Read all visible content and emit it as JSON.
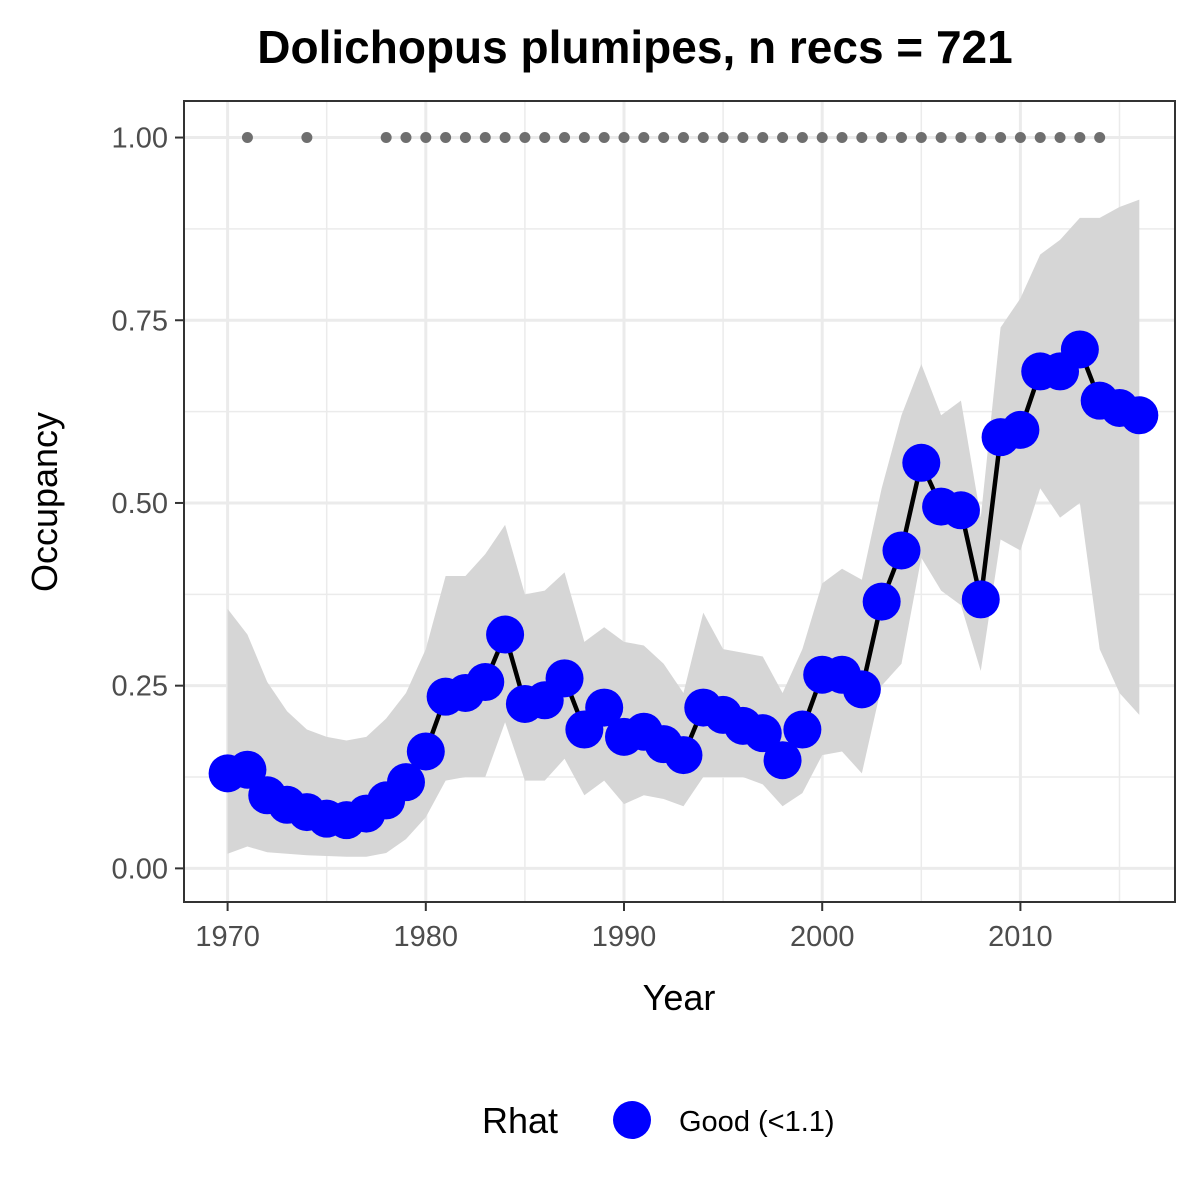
{
  "chart_data": {
    "type": "line",
    "title": "Dolichopus plumipes, n recs = 721",
    "xlabel": "Year",
    "ylabel": "Occupancy",
    "xlim": [
      1967.8,
      2017.8
    ],
    "ylim": [
      -0.046,
      1.05
    ],
    "x_ticks": [
      1970,
      1980,
      1990,
      2000,
      2010
    ],
    "x_tick_labels": [
      "1970",
      "1980",
      "1990",
      "2000",
      "2010"
    ],
    "y_ticks": [
      0,
      0.25,
      0.5,
      0.75,
      1.0
    ],
    "y_tick_labels": [
      "0.00",
      "0.25",
      "0.50",
      "0.75",
      "1.00"
    ],
    "grid": true,
    "series": [
      {
        "name": "Good (<1.1)",
        "x": [
          1970,
          1971,
          1972,
          1973,
          1974,
          1975,
          1976,
          1977,
          1978,
          1979,
          1980,
          1981,
          1982,
          1983,
          1984,
          1985,
          1986,
          1987,
          1988,
          1989,
          1990,
          1991,
          1992,
          1993,
          1994,
          1995,
          1996,
          1997,
          1998,
          1999,
          2000,
          2001,
          2002,
          2003,
          2004,
          2005,
          2006,
          2007,
          2008,
          2009,
          2010,
          2011,
          2012,
          2013,
          2014,
          2015,
          2016
        ],
        "y": [
          0.13,
          0.135,
          0.1,
          0.087,
          0.077,
          0.068,
          0.066,
          0.075,
          0.093,
          0.118,
          0.16,
          0.235,
          0.24,
          0.255,
          0.32,
          0.225,
          0.23,
          0.26,
          0.19,
          0.22,
          0.18,
          0.187,
          0.17,
          0.155,
          0.22,
          0.21,
          0.195,
          0.185,
          0.148,
          0.19,
          0.265,
          0.265,
          0.245,
          0.365,
          0.435,
          0.555,
          0.495,
          0.49,
          0.368,
          0.59,
          0.6,
          0.68,
          0.68,
          0.71,
          0.64,
          0.63,
          0.62
        ],
        "lower": [
          0.02,
          0.03,
          0.022,
          0.02,
          0.018,
          0.017,
          0.016,
          0.016,
          0.021,
          0.04,
          0.07,
          0.12,
          0.125,
          0.125,
          0.2,
          0.12,
          0.12,
          0.15,
          0.1,
          0.12,
          0.088,
          0.1,
          0.095,
          0.085,
          0.125,
          0.125,
          0.125,
          0.115,
          0.085,
          0.103,
          0.155,
          0.16,
          0.13,
          0.25,
          0.28,
          0.425,
          0.38,
          0.36,
          0.27,
          0.45,
          0.435,
          0.52,
          0.48,
          0.5,
          0.3,
          0.24,
          0.21
        ],
        "upper": [
          0.355,
          0.32,
          0.255,
          0.215,
          0.19,
          0.18,
          0.175,
          0.18,
          0.205,
          0.24,
          0.3,
          0.4,
          0.4,
          0.43,
          0.47,
          0.375,
          0.38,
          0.405,
          0.31,
          0.33,
          0.31,
          0.305,
          0.28,
          0.24,
          0.35,
          0.3,
          0.295,
          0.29,
          0.24,
          0.3,
          0.39,
          0.41,
          0.395,
          0.52,
          0.62,
          0.69,
          0.62,
          0.64,
          0.48,
          0.74,
          0.78,
          0.84,
          0.86,
          0.89,
          0.89,
          0.905,
          0.915
        ]
      }
    ],
    "detections_y": 1.0,
    "detection_years": [
      1971,
      1974,
      1978,
      1979,
      1980,
      1981,
      1982,
      1983,
      1984,
      1985,
      1986,
      1987,
      1988,
      1989,
      1990,
      1991,
      1992,
      1993,
      1994,
      1995,
      1996,
      1997,
      1998,
      1999,
      2000,
      2001,
      2002,
      2003,
      2004,
      2005,
      2006,
      2007,
      2008,
      2009,
      2010,
      2011,
      2012,
      2013,
      2014
    ],
    "legend": {
      "title": "Rhat",
      "position": "bottom",
      "entries": [
        {
          "label": "Good (<1.1)",
          "color": "#0000ff"
        }
      ]
    },
    "colors": {
      "points": "#0000ff",
      "line": "#000000",
      "ribbon": "#d6d6d6",
      "detections": "#6e6e6e",
      "grid": "#ebebeb",
      "panel_border": "#333333"
    }
  }
}
